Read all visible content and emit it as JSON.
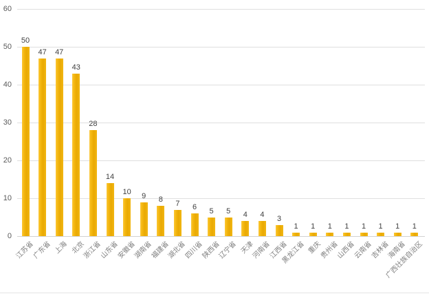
{
  "page": {
    "background": "#ffffff"
  },
  "chart_data": {
    "type": "bar",
    "title": "",
    "xlabel": "",
    "ylabel": "",
    "categories": [
      "江苏省",
      "广东省",
      "上海",
      "北京",
      "浙江省",
      "山东省",
      "安徽省",
      "湖南省",
      "福建省",
      "湖北省",
      "四川省",
      "陕西省",
      "辽宁省",
      "天津",
      "河南省",
      "江西省",
      "黑龙江省",
      "重庆",
      "贵州省",
      "山西省",
      "云南省",
      "吉林省",
      "海南省",
      "广西壮族自治区"
    ],
    "values": [
      50,
      47,
      47,
      43,
      28,
      14,
      10,
      9,
      8,
      7,
      6,
      5,
      5,
      4,
      4,
      3,
      1,
      1,
      1,
      1,
      1,
      1,
      1,
      1
    ],
    "ylim": [
      0,
      60
    ],
    "yticks": [
      0,
      10,
      20,
      30,
      40,
      50,
      60
    ],
    "grid": true,
    "legend": false,
    "data_labels": true,
    "colors": {
      "bar": "#EFB306",
      "gridline": "#DFDFDF",
      "y_tick_label": "#595959",
      "value_label": "#404040",
      "category_label": "#808080"
    }
  }
}
